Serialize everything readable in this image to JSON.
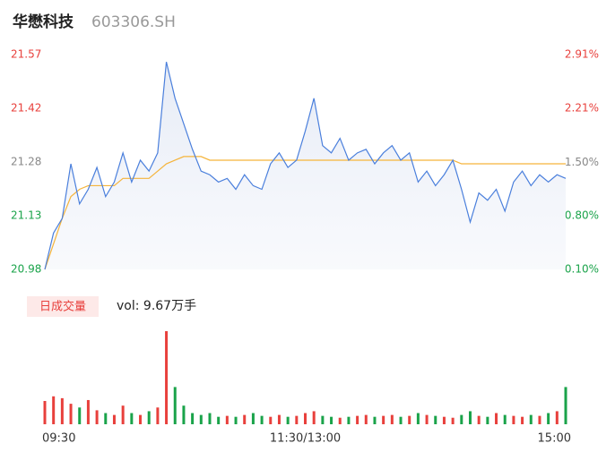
{
  "chart_data": {
    "type": "line",
    "title": "华懋科技",
    "subtitle": "603306.SH",
    "categories": [
      "09:30",
      null,
      null,
      null,
      null,
      null,
      null,
      null,
      null,
      null,
      null,
      null,
      null,
      null,
      null,
      null,
      null,
      null,
      null,
      null,
      null,
      null,
      null,
      null,
      null,
      null,
      null,
      null,
      null,
      null,
      "11:30/13:00",
      null,
      null,
      null,
      null,
      null,
      null,
      null,
      null,
      null,
      null,
      null,
      null,
      null,
      null,
      null,
      null,
      null,
      null,
      null,
      null,
      null,
      null,
      null,
      null,
      null,
      null,
      null,
      null,
      null,
      "15:00"
    ],
    "series": [
      {
        "name": "price",
        "color": "#4a7fdc",
        "values": [
          20.98,
          21.08,
          21.12,
          21.27,
          21.16,
          21.2,
          21.26,
          21.18,
          21.22,
          21.3,
          21.22,
          21.28,
          21.25,
          21.3,
          21.55,
          21.45,
          21.38,
          21.31,
          21.25,
          21.24,
          21.22,
          21.23,
          21.2,
          21.24,
          21.21,
          21.2,
          21.27,
          21.3,
          21.26,
          21.28,
          21.36,
          21.45,
          21.32,
          21.3,
          21.34,
          21.28,
          21.3,
          21.31,
          21.27,
          21.3,
          21.32,
          21.28,
          21.3,
          21.22,
          21.25,
          21.21,
          21.24,
          21.28,
          21.2,
          21.11,
          21.19,
          21.17,
          21.2,
          21.14,
          21.22,
          21.25,
          21.21,
          21.24,
          21.22,
          21.24,
          21.23
        ]
      },
      {
        "name": "average",
        "color": "#f5b43a",
        "values": [
          20.98,
          21.05,
          21.12,
          21.18,
          21.2,
          21.21,
          21.21,
          21.21,
          21.21,
          21.23,
          21.23,
          21.23,
          21.23,
          21.25,
          21.27,
          21.28,
          21.29,
          21.29,
          21.29,
          21.28,
          21.28,
          21.28,
          21.28,
          21.28,
          21.28,
          21.28,
          21.28,
          21.28,
          21.28,
          21.28,
          21.28,
          21.28,
          21.28,
          21.28,
          21.28,
          21.28,
          21.28,
          21.28,
          21.28,
          21.28,
          21.28,
          21.28,
          21.28,
          21.28,
          21.28,
          21.28,
          21.28,
          21.28,
          21.27,
          21.27,
          21.27,
          21.27,
          21.27,
          21.27,
          21.27,
          21.27,
          21.27,
          21.27,
          21.27,
          21.27,
          21.27
        ]
      }
    ],
    "ylim": [
      20.98,
      21.57
    ],
    "yticks": [
      {
        "value": 21.57,
        "label": "21.57"
      },
      {
        "value": 21.4225,
        "label": "21.42"
      },
      {
        "value": 21.275,
        "label": "21.28"
      },
      {
        "value": 21.1275,
        "label": "21.13"
      },
      {
        "value": 20.98,
        "label": "20.98"
      }
    ],
    "ytick_colors": [
      "#e8403c",
      "#e8403c",
      "#888888",
      "#1aa34a",
      "#1aa34a"
    ],
    "y2lim": [
      0.1,
      2.91
    ],
    "y2ticks": [
      {
        "value": 2.91,
        "label": "2.91%"
      },
      {
        "value": 2.21,
        "label": "2.21%"
      },
      {
        "value": 1.5,
        "label": "1.50%"
      },
      {
        "value": 0.8,
        "label": "0.80%"
      },
      {
        "value": 0.1,
        "label": "0.10%"
      }
    ],
    "volume": {
      "title": "日成交量",
      "summary": "vol: 9.67万手",
      "up_color": "#e8403c",
      "down_color": "#1aa34a",
      "ylim": [
        0,
        100
      ],
      "values": [
        25,
        30,
        28,
        22,
        18,
        26,
        15,
        12,
        10,
        20,
        12,
        10,
        14,
        18,
        100,
        40,
        20,
        12,
        10,
        12,
        8,
        9,
        8,
        10,
        12,
        9,
        8,
        10,
        8,
        9,
        12,
        14,
        9,
        8,
        7,
        8,
        9,
        10,
        8,
        9,
        10,
        8,
        9,
        12,
        10,
        9,
        8,
        7,
        10,
        14,
        9,
        8,
        12,
        10,
        9,
        8,
        10,
        9,
        12,
        14,
        40
      ]
    }
  }
}
